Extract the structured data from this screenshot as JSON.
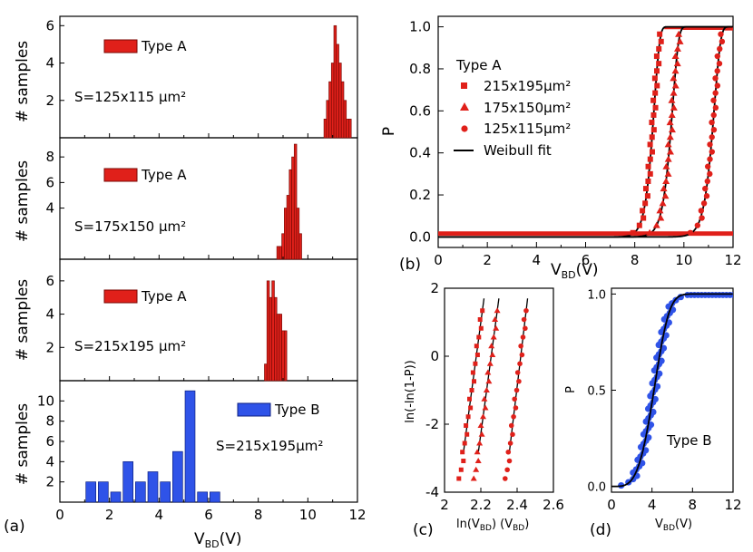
{
  "chart_data": [
    {
      "id": "hist_a1",
      "type": "bar",
      "panel": "(a)",
      "title": "",
      "xlabel": "",
      "ylabel": "# samples",
      "xlim": [
        0,
        12
      ],
      "ylim": [
        0,
        6.5
      ],
      "yticks": [
        2,
        4,
        6
      ],
      "legend": "Type A",
      "area_label": "S=125x115 μm²",
      "bar_width": 0.1,
      "color": "#e0201a",
      "x": [
        10.7,
        10.8,
        10.9,
        11.0,
        11.1,
        11.2,
        11.3,
        11.4,
        11.5,
        11.6,
        11.7
      ],
      "values": [
        1,
        2,
        3,
        4,
        6,
        5,
        4,
        3,
        2,
        1,
        1
      ]
    },
    {
      "id": "hist_a2",
      "type": "bar",
      "panel": "(a)",
      "ylabel": "# samples",
      "xlim": [
        0,
        12
      ],
      "ylim": [
        0,
        9.5
      ],
      "yticks": [
        4,
        6,
        8
      ],
      "legend": "Type A",
      "area_label": "S=175x150 μm²",
      "bar_width": 0.1,
      "color": "#e0201a",
      "x": [
        8.8,
        8.9,
        9.0,
        9.1,
        9.2,
        9.3,
        9.4,
        9.5,
        9.6,
        9.7
      ],
      "values": [
        1,
        1,
        2,
        4,
        5,
        7,
        8,
        9,
        4,
        2
      ]
    },
    {
      "id": "hist_a3",
      "type": "bar",
      "panel": "(a)",
      "ylabel": "# samples",
      "xlim": [
        0,
        12
      ],
      "ylim": [
        0,
        7.3
      ],
      "yticks": [
        2,
        4,
        6
      ],
      "legend": "Type A",
      "area_label": "S=215x195 μm²",
      "bar_width": 0.1,
      "color": "#e0201a",
      "x": [
        8.3,
        8.4,
        8.5,
        8.6,
        8.7,
        8.8,
        8.9,
        9.0,
        9.1
      ],
      "values": [
        1,
        6,
        5,
        6,
        5,
        4,
        4,
        3,
        3
      ]
    },
    {
      "id": "hist_b",
      "type": "bar",
      "panel": "(a)",
      "ylabel": "# samples",
      "xlabel": "V_BD(V)",
      "xlim": [
        0,
        12
      ],
      "ylim": [
        0,
        12
      ],
      "yticks": [
        2,
        4,
        6,
        8,
        10
      ],
      "xticks": [
        0,
        2,
        4,
        6,
        8,
        10,
        12
      ],
      "legend": "Type B",
      "area_label": "S=215x195μm²",
      "panel_label": "(a)",
      "bar_width": 0.4,
      "color": "#2f53e8",
      "x": [
        1.25,
        1.75,
        2.25,
        2.75,
        3.25,
        3.75,
        4.25,
        4.75,
        5.25,
        5.75,
        6.25
      ],
      "values": [
        2,
        2,
        1,
        4,
        2,
        3,
        2,
        5,
        11,
        1,
        1
      ]
    },
    {
      "id": "weibull_a",
      "type": "scatter",
      "panel": "(b)",
      "panel_label": "(b)",
      "xlabel": "V_BD(V)",
      "ylabel": "P",
      "xlim": [
        0,
        12
      ],
      "ylim": [
        -0.05,
        1.05
      ],
      "xticks": [
        0,
        2,
        4,
        6,
        8,
        10,
        12
      ],
      "yticks": [
        0.0,
        0.2,
        0.4,
        0.6,
        0.8,
        1.0
      ],
      "legend_title": "Type A",
      "series": [
        {
          "name": "215x195μm²",
          "marker": "square",
          "x0": 8.8,
          "beta": 40
        },
        {
          "name": "175x150μm²",
          "marker": "triangle",
          "x0": 9.55,
          "beta": 40
        },
        {
          "name": "125x115μm²",
          "marker": "circle",
          "x0": 11.25,
          "beta": 45
        }
      ],
      "fit_label": "Weibull fit"
    },
    {
      "id": "weibull_lin",
      "type": "scatter",
      "panel": "(c)",
      "panel_label": "(c)",
      "xlabel": "ln(V_BD) (V_BD)",
      "ylabel": "ln(-ln(1-P))",
      "xlim": [
        2.0,
        2.6
      ],
      "ylim": [
        -4,
        2
      ],
      "xticks": [
        2.0,
        2.2,
        2.4,
        2.6
      ],
      "yticks": [
        -4,
        -2,
        0,
        2
      ],
      "series": [
        {
          "name": "215x195",
          "marker": "square",
          "lnx0": 2.175,
          "slope": 40
        },
        {
          "name": "175x150",
          "marker": "triangle",
          "lnx0": 2.257,
          "slope": 40
        },
        {
          "name": "125x115",
          "marker": "circle",
          "lnx0": 2.42,
          "slope": 45
        }
      ]
    },
    {
      "id": "cdf_b",
      "type": "scatter",
      "panel": "(d)",
      "panel_label": "(d)",
      "xlabel": "V_BD(V)",
      "ylabel": "P",
      "xlim": [
        0,
        12
      ],
      "ylim": [
        -0.03,
        1.03
      ],
      "xticks": [
        0,
        4,
        8,
        12
      ],
      "yticks": [
        0.0,
        0.5,
        1.0
      ],
      "legend": "Type B",
      "color": "#2f53e8",
      "fit": {
        "x0": 4.6,
        "beta": 4
      }
    }
  ]
}
